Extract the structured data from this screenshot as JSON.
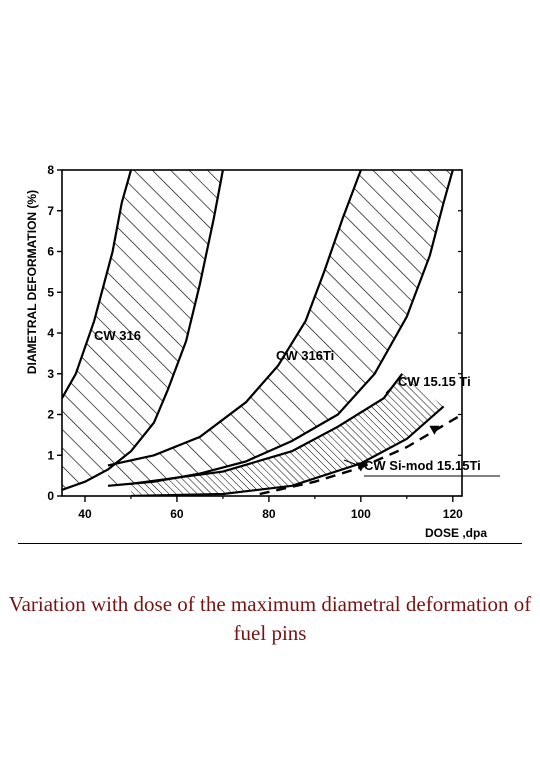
{
  "chart_data": {
    "type": "line",
    "xlabel": "DOSE ,dpa",
    "ylabel": "DIAMETRAL DEFORMATION (%)",
    "xlim": [
      35,
      122
    ],
    "ylim": [
      0,
      8
    ],
    "x_ticks": [
      "40",
      "60",
      "80",
      "100",
      "120"
    ],
    "y_ticks": [
      "0",
      "1",
      "2",
      "3",
      "4",
      "5",
      "6",
      "7",
      "8"
    ],
    "grid": false,
    "series": [
      {
        "name": "CW 316",
        "style": "hatched band",
        "lower": [
          [
            35,
            0.15
          ],
          [
            40,
            0.35
          ],
          [
            45,
            0.65
          ],
          [
            50,
            1.1
          ],
          [
            55,
            1.8
          ],
          [
            58,
            2.6
          ],
          [
            62,
            3.8
          ],
          [
            65,
            5.2
          ],
          [
            68,
            6.8
          ],
          [
            70,
            8.0
          ]
        ],
        "upper": [
          [
            35,
            2.4
          ],
          [
            38,
            3.0
          ],
          [
            42,
            4.3
          ],
          [
            46,
            6.0
          ],
          [
            48,
            7.2
          ],
          [
            50,
            8.0
          ]
        ]
      },
      {
        "name": "CW 316Ti",
        "style": "hatched band",
        "lower": [
          [
            45,
            0.25
          ],
          [
            55,
            0.35
          ],
          [
            65,
            0.55
          ],
          [
            75,
            0.85
          ],
          [
            85,
            1.35
          ],
          [
            95,
            2.0
          ],
          [
            103,
            3.0
          ],
          [
            110,
            4.4
          ],
          [
            115,
            5.9
          ],
          [
            118,
            7.2
          ],
          [
            120,
            8.0
          ]
        ],
        "upper": [
          [
            45,
            0.75
          ],
          [
            55,
            1.0
          ],
          [
            65,
            1.45
          ],
          [
            75,
            2.3
          ],
          [
            82,
            3.2
          ],
          [
            88,
            4.3
          ],
          [
            92,
            5.5
          ],
          [
            96,
            6.8
          ],
          [
            100,
            8.0
          ]
        ]
      },
      {
        "name": "CW 15.15 Ti",
        "style": "dense hatched band",
        "lower": [
          [
            50,
            0.0
          ],
          [
            70,
            0.05
          ],
          [
            85,
            0.25
          ],
          [
            100,
            0.8
          ],
          [
            110,
            1.4
          ],
          [
            118,
            2.2
          ]
        ],
        "upper": [
          [
            50,
            0.3
          ],
          [
            70,
            0.6
          ],
          [
            85,
            1.1
          ],
          [
            95,
            1.7
          ],
          [
            105,
            2.4
          ],
          [
            109,
            3.0
          ]
        ]
      },
      {
        "name": "CW Si-mod 15.15Ti",
        "style": "dashed",
        "points": [
          [
            78,
            0.05
          ],
          [
            90,
            0.35
          ],
          [
            100,
            0.7
          ],
          [
            110,
            1.2
          ],
          [
            116,
            1.6
          ],
          [
            122,
            2.0
          ]
        ]
      }
    ]
  },
  "caption": "Variation with dose of the maximum diametral deformation of fuel pins"
}
